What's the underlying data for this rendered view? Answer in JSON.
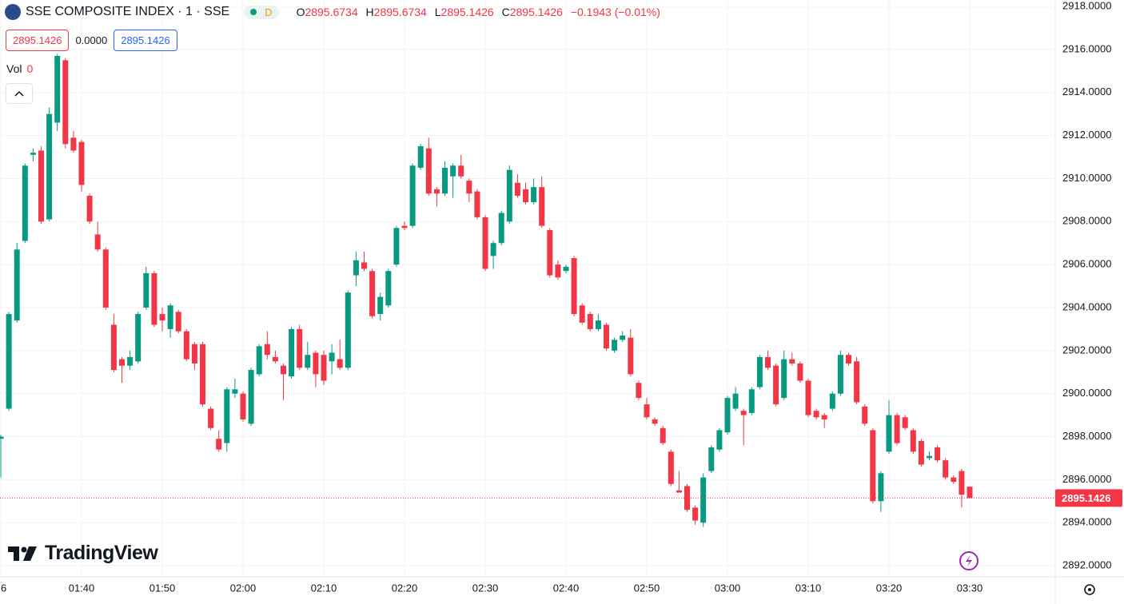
{
  "chart_data": {
    "type": "candlestick",
    "title": "SSE COMPOSITE INDEX · 1 · SSE",
    "badge": "D",
    "legend_letters": [
      "O",
      "H",
      "L",
      "C"
    ],
    "change": "−0.1943 (−0.01%)",
    "spread": "0.0000",
    "volume_label": "Vol",
    "volume": 0,
    "logo": "TradingView",
    "up_color": "#089981",
    "down_color": "#f23645",
    "grid": true,
    "categories": [
      "6",
      null,
      null,
      null,
      null,
      null,
      null,
      null,
      null,
      null,
      "01:40",
      null,
      null,
      null,
      null,
      null,
      null,
      null,
      null,
      null,
      "01:50",
      null,
      null,
      null,
      null,
      null,
      null,
      null,
      null,
      null,
      "02:00",
      null,
      null,
      null,
      null,
      null,
      null,
      null,
      null,
      null,
      "02:10",
      null,
      null,
      null,
      null,
      null,
      null,
      null,
      null,
      null,
      "02:20",
      null,
      null,
      null,
      null,
      null,
      null,
      null,
      null,
      null,
      "02:30",
      null,
      null,
      null,
      null,
      null,
      null,
      null,
      null,
      null,
      "02:40",
      null,
      null,
      null,
      null,
      null,
      null,
      null,
      null,
      null,
      "02:50",
      null,
      null,
      null,
      null,
      null,
      null,
      null,
      null,
      null,
      "03:00",
      null,
      null,
      null,
      null,
      null,
      null,
      null,
      null,
      null,
      "03:10",
      null,
      null,
      null,
      null,
      null,
      null,
      null,
      null,
      null,
      "03:20",
      null,
      null,
      null,
      null,
      null,
      null,
      null,
      null,
      null,
      "03:30"
    ],
    "open": [
      2897.9,
      2899.3,
      2903.4,
      2907.1,
      2911.1,
      2911.3,
      2908.1,
      2912.6,
      2915.5,
      2911.9,
      2911.7,
      2909.2,
      2907.4,
      2906.7,
      2903.2,
      2901.6,
      2901.3,
      2901.5,
      2904.0,
      2905.6,
      2903.7,
      2903.0,
      2903.8,
      2902.9,
      2902.3,
      2902.3,
      2899.3,
      2897.9,
      2897.7,
      2900.0,
      2900.0,
      2898.6,
      2900.9,
      2902.3,
      2901.7,
      2901.3,
      2900.8,
      2903.0,
      2901.2,
      2901.9,
      2901.8,
      2901.5,
      2901.6,
      2901.2,
      2905.5,
      2906.1,
      2905.7,
      2903.7,
      2904.1,
      2906.0,
      2907.8,
      2907.8,
      2910.5,
      2911.4,
      2909.5,
      2909.3,
      2910.1,
      2910.6,
      2909.9,
      2909.4,
      2908.2,
      2906.4,
      2907.0,
      2908.0,
      2909.8,
      2909.5,
      2908.9,
      2909.6,
      2907.6,
      2906.0,
      2905.7,
      2906.3,
      2904.1,
      2903.7,
      2903.0,
      2903.2,
      2902.0,
      2902.5,
      2902.6,
      2900.5,
      2899.5,
      2898.8,
      2898.4,
      2897.3,
      2895.5,
      2895.7,
      2894.7,
      2894.0,
      2896.4,
      2897.4,
      2898.2,
      2899.3,
      2899.2,
      2899.1,
      2900.3,
      2901.7,
      2901.3,
      2899.8,
      2901.6,
      2901.4,
      2900.6,
      2899.2,
      2899.0,
      2899.3,
      2900.0,
      2901.8,
      2901.5,
      2899.4,
      2898.3,
      2895.0,
      2897.3,
      2899.0,
      2898.9,
      2898.3,
      2897.8,
      2897.0,
      2897.5,
      2896.9,
      2896.1,
      2896.4,
      2895.6734
    ],
    "high": [
      2898.1,
      2903.8,
      2907.0,
      2910.7,
      2911.4,
      2911.5,
      2913.3,
      2915.8,
      2915.6,
      2912.2,
      2911.8,
      2909.3,
      2908.0,
      2906.8,
      2903.7,
      2901.7,
      2902.0,
      2903.8,
      2905.9,
      2905.7,
      2904.0,
      2904.2,
      2903.9,
      2903.0,
      2902.4,
      2902.4,
      2899.4,
      2898.3,
      2900.3,
      2900.7,
      2900.1,
      2901.2,
      2902.3,
      2902.9,
      2902.0,
      2901.4,
      2903.1,
      2903.2,
      2902.4,
      2902.0,
      2902.0,
      2902.3,
      2902.5,
      2904.8,
      2906.6,
      2906.6,
      2905.8,
      2904.7,
      2905.8,
      2907.8,
      2908.0,
      2910.7,
      2911.6,
      2911.9,
      2909.6,
      2910.8,
      2910.7,
      2911.1,
      2910.0,
      2909.5,
      2908.3,
      2907.1,
      2908.5,
      2910.6,
      2910.2,
      2909.8,
      2910.0,
      2910.1,
      2907.7,
      2906.2,
      2906.0,
      2906.4,
      2904.2,
      2903.8,
      2903.7,
      2903.3,
      2902.6,
      2902.9,
      2903.0,
      2900.6,
      2899.8,
      2898.9,
      2898.5,
      2897.4,
      2896.4,
      2895.8,
      2894.8,
      2896.3,
      2897.6,
      2898.4,
      2899.9,
      2900.3,
      2899.3,
      2900.3,
      2901.8,
      2902.0,
      2901.4,
      2902.0,
      2901.9,
      2901.5,
      2900.7,
      2899.3,
      2899.1,
      2900.1,
      2902.0,
      2901.9,
      2901.7,
      2899.5,
      2898.4,
      2896.4,
      2899.7,
      2899.1,
      2899.0,
      2898.4,
      2897.9,
      2897.3,
      2897.6,
      2897.0,
      2896.2,
      2896.5,
      2895.6734
    ],
    "low": [
      2896.1,
      2899.2,
      2903.3,
      2907.0,
      2910.8,
      2907.9,
      2908.0,
      2912.2,
      2911.4,
      2911.2,
      2909.4,
      2907.9,
      2906.6,
      2903.9,
      2901.0,
      2900.5,
      2901.1,
      2901.4,
      2903.9,
      2903.1,
      2902.9,
      2902.6,
      2902.8,
      2901.5,
      2901.1,
      2899.4,
      2898.3,
      2897.3,
      2897.3,
      2899.8,
      2898.7,
      2898.5,
      2900.8,
      2901.6,
      2901.4,
      2899.7,
      2900.7,
      2901.1,
      2901.1,
      2900.3,
      2900.4,
      2900.9,
      2901.1,
      2901.1,
      2905.0,
      2905.7,
      2903.5,
      2903.4,
      2904.0,
      2905.9,
      2907.6,
      2907.7,
      2910.4,
      2909.2,
      2908.7,
      2909.2,
      2909.1,
      2910.0,
      2908.9,
      2908.1,
      2905.7,
      2905.8,
      2906.9,
      2907.9,
      2909.1,
      2908.8,
      2908.8,
      2907.7,
      2905.4,
      2905.3,
      2905.6,
      2903.6,
      2903.2,
      2902.9,
      2902.9,
      2902.0,
      2901.9,
      2902.4,
      2900.8,
      2899.7,
      2898.8,
      2898.5,
      2897.6,
      2895.7,
      2895.4,
      2894.5,
      2893.9,
      2893.8,
      2896.3,
      2897.3,
      2898.1,
      2899.2,
      2897.6,
      2899.0,
      2900.2,
      2901.1,
      2899.4,
      2899.7,
      2901.3,
      2900.5,
      2898.9,
      2898.8,
      2898.4,
      2899.2,
      2899.9,
      2901.3,
      2899.5,
      2898.5,
      2894.9,
      2894.5,
      2897.2,
      2897.6,
      2898.3,
      2897.2,
      2896.6,
      2896.9,
      2896.8,
      2896.0,
      2895.8,
      2894.7,
      2895.1426
    ],
    "close": [
      2898.0,
      2903.7,
      2906.7,
      2910.6,
      2911.2,
      2908.0,
      2913.0,
      2915.7,
      2911.6,
      2911.3,
      2909.7,
      2908.0,
      2906.7,
      2904.0,
      2901.1,
      2901.3,
      2901.7,
      2903.7,
      2905.6,
      2903.2,
      2903.4,
      2904.1,
      2902.9,
      2901.6,
      2901.4,
      2899.5,
      2898.4,
      2897.4,
      2900.2,
      2900.2,
      2898.8,
      2901.1,
      2902.2,
      2901.8,
      2901.5,
      2900.9,
      2903.0,
      2901.2,
      2901.8,
      2900.9,
      2900.6,
      2901.9,
      2901.2,
      2904.7,
      2906.2,
      2905.8,
      2903.6,
      2904.5,
      2905.7,
      2907.7,
      2907.7,
      2910.6,
      2911.5,
      2909.3,
      2909.3,
      2910.5,
      2910.6,
      2910.1,
      2909.3,
      2908.2,
      2905.8,
      2907.0,
      2908.4,
      2910.4,
      2909.2,
      2908.9,
      2909.6,
      2907.8,
      2905.5,
      2905.4,
      2905.9,
      2903.7,
      2903.3,
      2903.0,
      2903.4,
      2902.1,
      2902.5,
      2902.7,
      2900.9,
      2899.8,
      2898.9,
      2898.6,
      2897.7,
      2895.8,
      2895.4,
      2894.6,
      2894.1,
      2896.1,
      2897.5,
      2898.3,
      2899.8,
      2900.0,
      2899.0,
      2900.2,
      2901.7,
      2901.2,
      2899.5,
      2901.6,
      2901.4,
      2900.6,
      2899.0,
      2898.9,
      2898.8,
      2900.0,
      2901.8,
      2901.4,
      2899.6,
      2898.6,
      2895.0,
      2896.3,
      2899.0,
      2897.7,
      2898.4,
      2897.3,
      2896.7,
      2897.1,
      2896.9,
      2896.1,
      2895.9,
      2895.3,
      2895.1426
    ],
    "ylim": [
      2891.5,
      2918.3
    ],
    "yticks": [
      {
        "value": 2892,
        "label": "2892.0000"
      },
      {
        "value": 2894,
        "label": "2894.0000"
      },
      {
        "value": 2896,
        "label": "2896.0000"
      },
      {
        "value": 2898,
        "label": "2898.0000"
      },
      {
        "value": 2900,
        "label": "2900.0000"
      },
      {
        "value": 2902,
        "label": "2902.0000"
      },
      {
        "value": 2904,
        "label": "2904.0000"
      },
      {
        "value": 2906,
        "label": "2906.0000"
      },
      {
        "value": 2908,
        "label": "2908.0000"
      },
      {
        "value": 2910,
        "label": "2910.0000"
      },
      {
        "value": 2912,
        "label": "2912.0000"
      },
      {
        "value": 2914,
        "label": "2914.0000"
      },
      {
        "value": 2916,
        "label": "2916.0000"
      },
      {
        "value": 2918,
        "label": "2918.0000"
      }
    ]
  }
}
